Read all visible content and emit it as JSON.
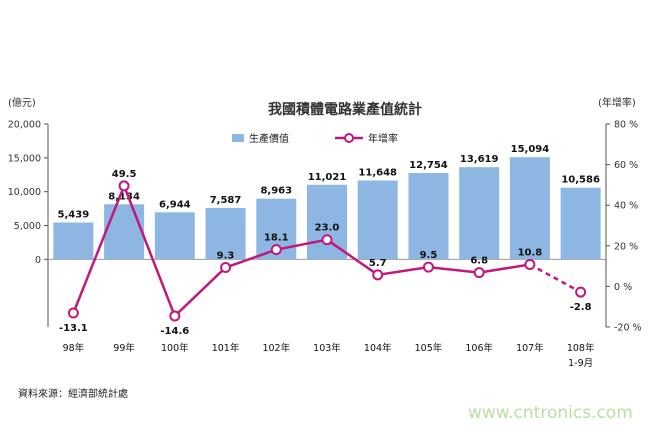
{
  "chart_data": {
    "type": "bar",
    "title": "我國積體電路業產值統計",
    "left_axis_unit": "(億元)",
    "right_axis_unit": "(年增率)",
    "categories": [
      "98年",
      "99年",
      "100年",
      "101年",
      "102年",
      "103年",
      "104年",
      "105年",
      "106年",
      "107年",
      "108年"
    ],
    "category_sublabels": [
      "",
      "",
      "",
      "",
      "",
      "",
      "",
      "",
      "",
      "",
      "1-9月"
    ],
    "series": [
      {
        "name": "生產價值",
        "kind": "bar",
        "axis": "left",
        "color": "#8db7e2",
        "values": [
          5439,
          8134,
          6944,
          7587,
          8963,
          11021,
          11648,
          12754,
          13619,
          15094,
          10586
        ],
        "labels": [
          "5,439",
          "8,134",
          "6,944",
          "7,587",
          "8,963",
          "11,021",
          "11,648",
          "12,754",
          "13,619",
          "15,094",
          "10,586"
        ]
      },
      {
        "name": "年增率",
        "kind": "line",
        "axis": "right",
        "color": "#c2187d",
        "values": [
          -13.1,
          49.5,
          -14.6,
          9.3,
          18.1,
          23.0,
          5.7,
          9.5,
          6.8,
          10.8,
          -2.8
        ],
        "labels": [
          "-13.1",
          "49.5",
          "-14.6",
          "9.3",
          "18.1",
          "23.0",
          "5.7",
          "9.5",
          "6.8",
          "10.8",
          "-2.8"
        ],
        "dashed_last_segment": true
      }
    ],
    "left_axis": {
      "range": [
        -10000,
        20000
      ],
      "ticks": [
        0,
        5000,
        10000,
        15000,
        20000
      ],
      "tick_labels": [
        "0",
        "5,000",
        "10,000",
        "15,000",
        "20,000"
      ]
    },
    "right_axis": {
      "range": [
        -20,
        80
      ],
      "ticks": [
        -20,
        0,
        20,
        40,
        60,
        80
      ],
      "tick_labels": [
        "-20 %",
        "0 %",
        "20 %",
        "40 %",
        "60 %",
        "80 %"
      ]
    },
    "grid": false,
    "legend_position": "top-center"
  },
  "source_note": "資料來源：經濟部統計處",
  "watermark": "www.cntronics.com"
}
